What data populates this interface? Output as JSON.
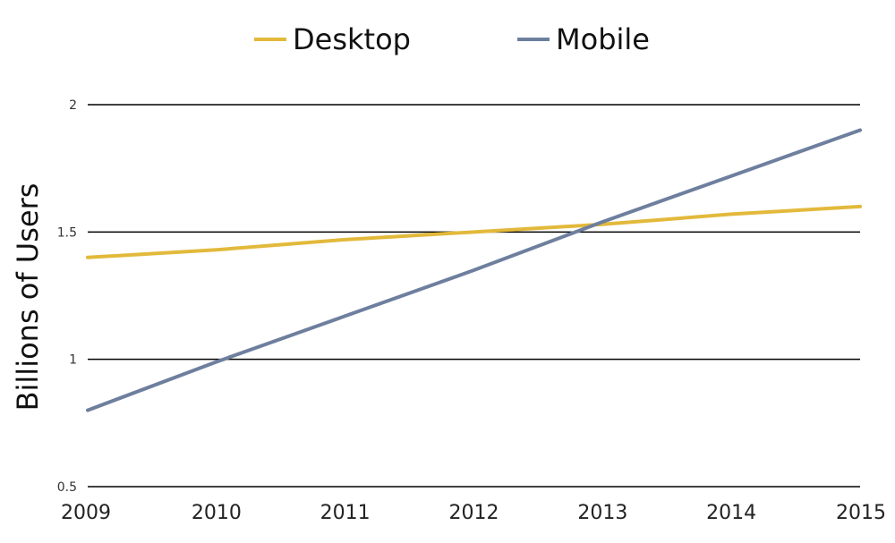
{
  "chart_data": {
    "type": "line",
    "x": [
      "2009",
      "2010",
      "2011",
      "2012",
      "2013",
      "2014",
      "2015"
    ],
    "series": [
      {
        "name": "Desktop",
        "color": "#E2B93B",
        "values": [
          1.4,
          1.43,
          1.47,
          1.5,
          1.53,
          1.57,
          1.6
        ]
      },
      {
        "name": "Mobile",
        "color": "#6E7F9E",
        "values": [
          0.8,
          0.99,
          1.17,
          1.35,
          1.54,
          1.72,
          1.9
        ]
      }
    ],
    "yticks": [
      "0.5",
      "1",
      "1.5",
      "2"
    ],
    "ylim": [
      0.5,
      2
    ],
    "xlabel": "",
    "ylabel": "Billions of Users",
    "grid": true,
    "legend": "top"
  }
}
